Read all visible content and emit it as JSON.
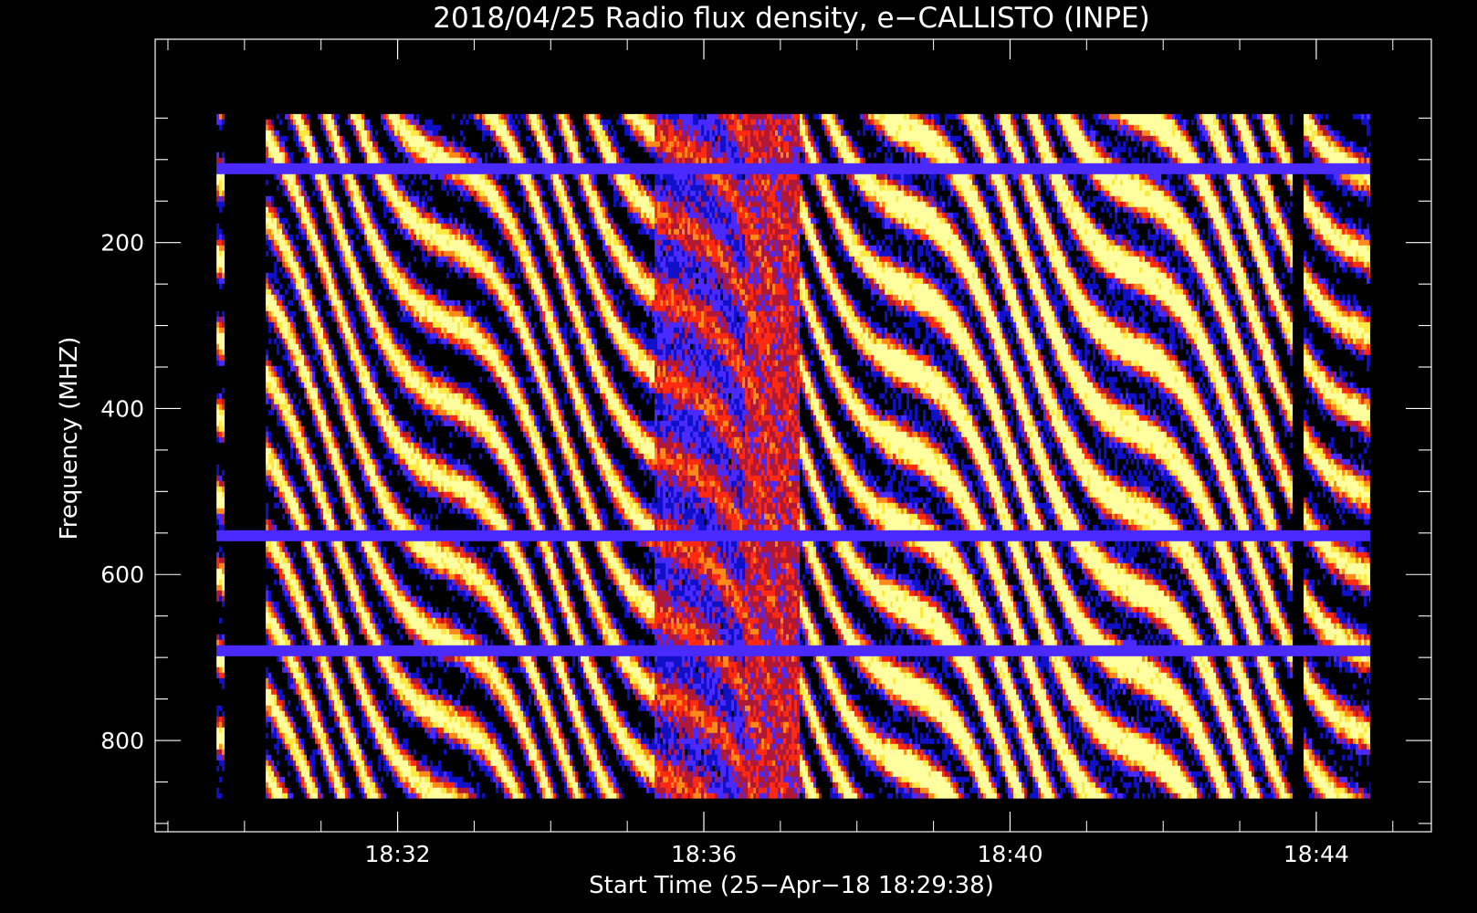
{
  "chart_data": {
    "type": "heatmap",
    "title": "2018/04/25  Radio flux density, e−CALLISTO (INPE)",
    "xlabel": "Start Time (25−Apr−18 18:29:38)",
    "ylabel": "Frequency (MHZ)",
    "x_tick_labels": [
      "18:32",
      "18:36",
      "18:40",
      "18:44"
    ],
    "x_ticks_minutes": [
      2.3667,
      6.3667,
      10.3667,
      14.3667
    ],
    "y_tick_labels": [
      "200",
      "400",
      "600",
      "800"
    ],
    "y_ticks_mhz": [
      200,
      400,
      600,
      800
    ],
    "xlim_minutes": [
      -0.8,
      15.87
    ],
    "ylim_mhz": [
      -45,
      910
    ],
    "data_extent": {
      "start_minute": 0,
      "end_minute": 15.07,
      "freq_low_mhz": 45,
      "freq_high_mhz": 870
    },
    "colormap": [
      "#000000",
      "#1010c8",
      "#4a2aff",
      "#b01838",
      "#ff2a10",
      "#ff8a1a",
      "#ffe840",
      "#ffffa0"
    ],
    "dead_columns_minutes": [
      [
        0.1,
        0.62
      ],
      [
        14.05,
        14.2
      ]
    ],
    "horizontal_interference_mhz": [
      108,
      550,
      690
    ]
  }
}
